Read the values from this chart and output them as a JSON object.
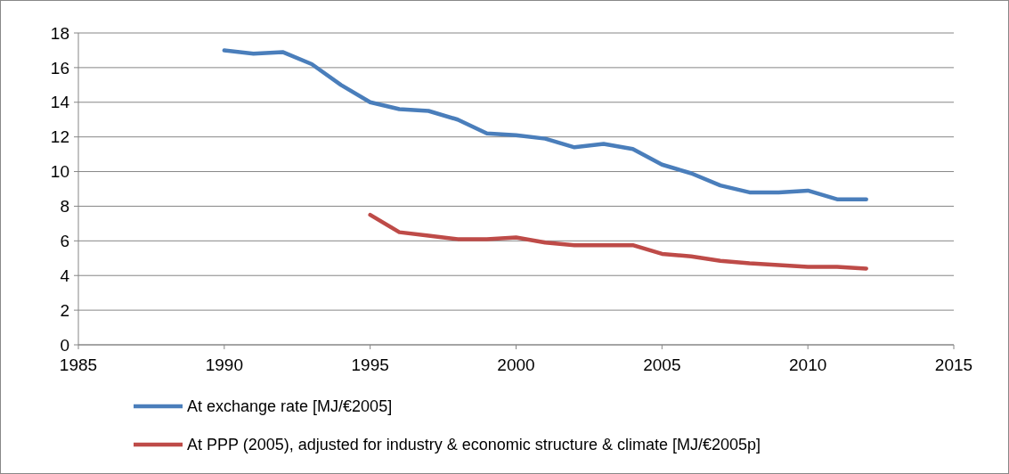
{
  "chart_data": {
    "type": "line",
    "x": [
      1990,
      1991,
      1992,
      1993,
      1994,
      1995,
      1996,
      1997,
      1998,
      1999,
      2000,
      2001,
      2002,
      2003,
      2004,
      2005,
      2006,
      2007,
      2008,
      2009,
      2010,
      2011,
      2012
    ],
    "series": [
      {
        "name": "At exchange rate [MJ/€2005]",
        "color": "#4a7ebb",
        "values": [
          17.0,
          16.8,
          16.9,
          16.2,
          15.0,
          14.0,
          13.6,
          13.5,
          13.0,
          12.2,
          12.1,
          11.9,
          11.4,
          11.6,
          11.3,
          10.4,
          9.9,
          9.2,
          8.8,
          8.8,
          8.9,
          8.4,
          8.4
        ]
      },
      {
        "name": "At PPP (2005), adjusted for industry & economic structure & climate [MJ/€2005p]",
        "color": "#be4b48",
        "values": [
          null,
          null,
          null,
          null,
          null,
          7.5,
          6.5,
          6.3,
          6.1,
          6.1,
          6.2,
          5.9,
          5.75,
          5.75,
          5.75,
          5.25,
          5.1,
          4.85,
          4.7,
          4.6,
          4.5,
          4.5,
          4.4
        ]
      }
    ],
    "xlim": [
      1985,
      2015
    ],
    "xticks": [
      1985,
      1990,
      1995,
      2000,
      2005,
      2010,
      2015
    ],
    "ylim": [
      0,
      18
    ],
    "yticks": [
      0,
      2,
      4,
      6,
      8,
      10,
      12,
      14,
      16,
      18
    ],
    "grid": "y",
    "legend": "bottom",
    "marker": "none",
    "line_style": "solid"
  }
}
